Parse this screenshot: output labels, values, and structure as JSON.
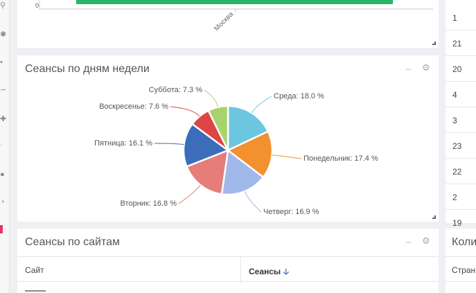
{
  "top_chart": {
    "y_tick": "0",
    "x_label": "Москва",
    "bar_color": "#27b56a"
  },
  "weekday_panel": {
    "title": "Сеансы по дням недели",
    "minimize_icon": "minus-icon",
    "settings_icon": "gear-icon"
  },
  "chart_data": {
    "type": "pie",
    "title": "Сеансы по дням недели",
    "slices": [
      {
        "label": "Среда: 18.0 %",
        "value": 18.0,
        "color": "#6cc6df"
      },
      {
        "label": "Понедельник: 17.4 %",
        "value": 17.4,
        "color": "#f2912e"
      },
      {
        "label": "Четверг: 16.9 %",
        "value": 16.9,
        "color": "#a1b8ea"
      },
      {
        "label": "Вторник: 16.8 %",
        "value": 16.8,
        "color": "#e67d78"
      },
      {
        "label": "Пятница: 16.1 %",
        "value": 16.1,
        "color": "#3b6dbb"
      },
      {
        "label": "Воскресенье: 7.6 %",
        "value": 7.6,
        "color": "#df4545"
      },
      {
        "label": "Суббота: 7.3 %",
        "value": 7.3,
        "color": "#a8d26c"
      }
    ]
  },
  "sites_panel": {
    "title": "Сеансы по сайтам",
    "col_site": "Сайт",
    "col_sessions": "Сеансы",
    "sort_icon": "arrow-down-icon",
    "minimize_icon": "minus-icon",
    "settings_icon": "gear-icon"
  },
  "right_panel": {
    "numbers": [
      "1",
      "21",
      "20",
      "4",
      "3",
      "23",
      "22",
      "2",
      "19"
    ],
    "title": "Коли",
    "col": "Стран"
  }
}
